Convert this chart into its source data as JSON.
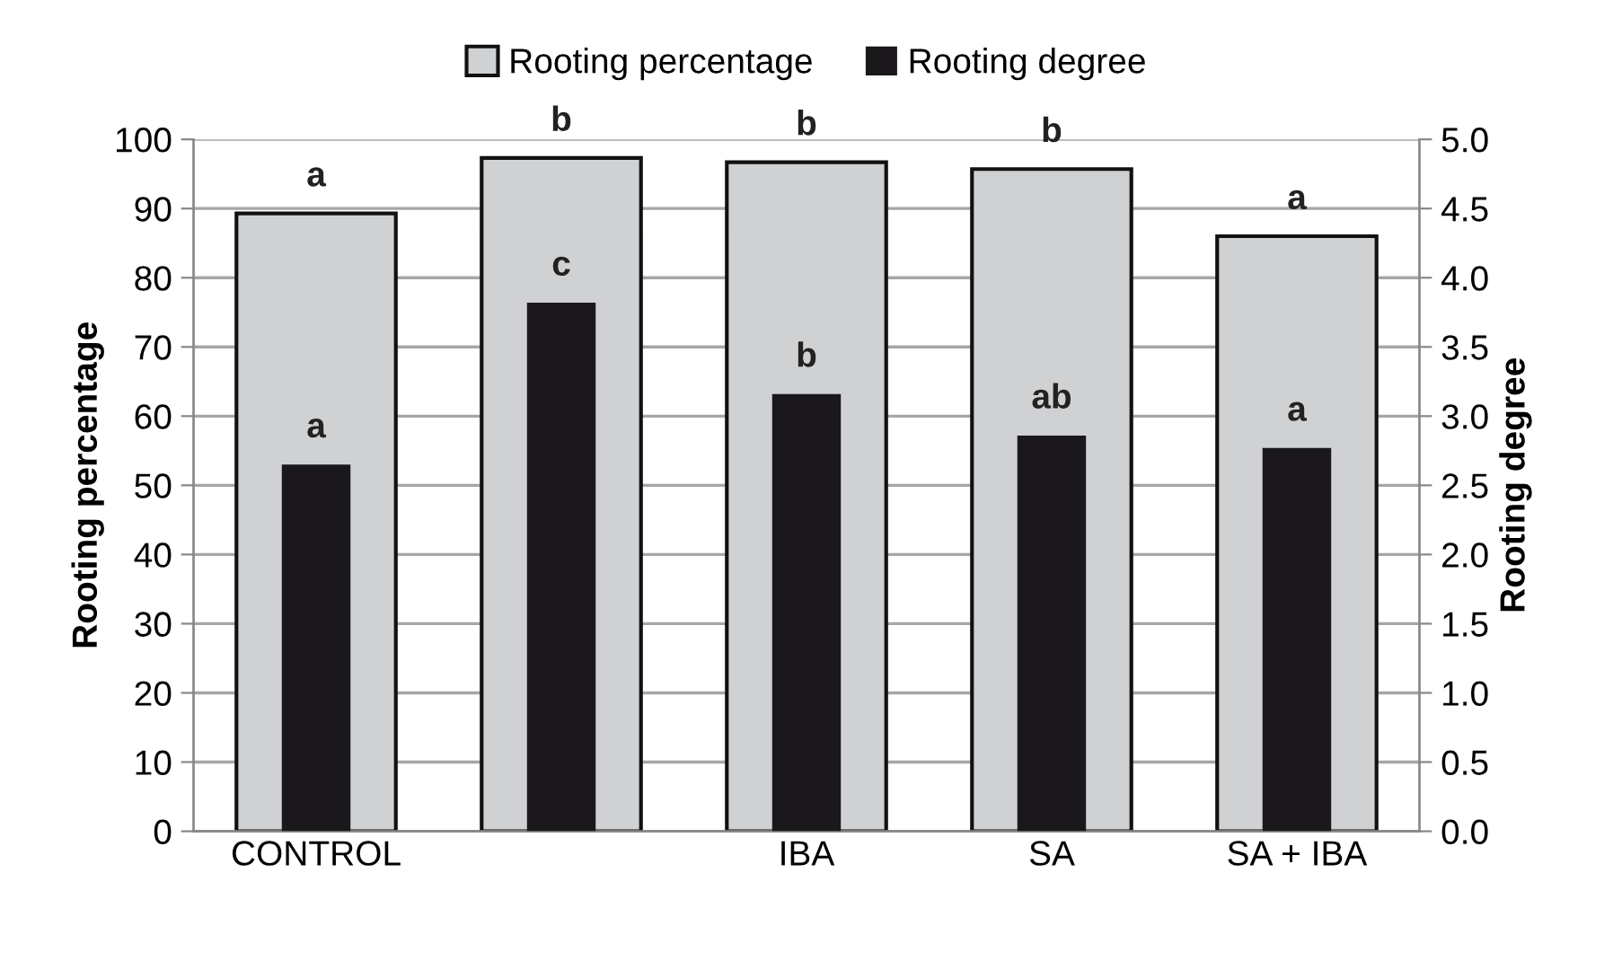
{
  "chart_data": {
    "type": "bar",
    "categories": [
      "CONTROL",
      null,
      "IBA",
      "SA",
      "SA + IBA"
    ],
    "ylabel": "Rooting percentage",
    "y2label": "Rooting degree",
    "series": [
      {
        "name": "Rooting percentage",
        "color": "#d0d1d3",
        "values": [
          89.3,
          97.3,
          96.7,
          95.7,
          86.0
        ],
        "value_labels": [
          "a",
          "b",
          "b",
          "b",
          "a"
        ]
      },
      {
        "name": "Rooting degree",
        "color": "#1a181b",
        "axis": "y2",
        "values": [
          2.65,
          3.82,
          3.16,
          2.86,
          2.77
        ],
        "value_labels": [
          "a",
          "c",
          "b",
          "ab",
          "a"
        ]
      }
    ],
    "ylim": [
      0,
      100
    ],
    "yticks": [
      0,
      10,
      20,
      30,
      40,
      50,
      60,
      70,
      80,
      90,
      100
    ],
    "y2lim": [
      0,
      5
    ],
    "y2ticks": [
      {
        "value": 0,
        "label": "0.0"
      },
      {
        "value": 0.5,
        "label": "0.5"
      },
      {
        "value": 1,
        "label": "1.0"
      },
      {
        "value": 1.5,
        "label": "1.5"
      },
      {
        "value": 2,
        "label": "2.0"
      },
      {
        "value": 2.5,
        "label": "2.5"
      },
      {
        "value": 3,
        "label": "3.0"
      },
      {
        "value": 3.5,
        "label": "3.5"
      },
      {
        "value": 4,
        "label": "4.0"
      },
      {
        "value": 4.5,
        "label": "4.5"
      },
      {
        "value": 5,
        "label": "5.0"
      }
    ],
    "grid": "y",
    "legend": "top"
  }
}
